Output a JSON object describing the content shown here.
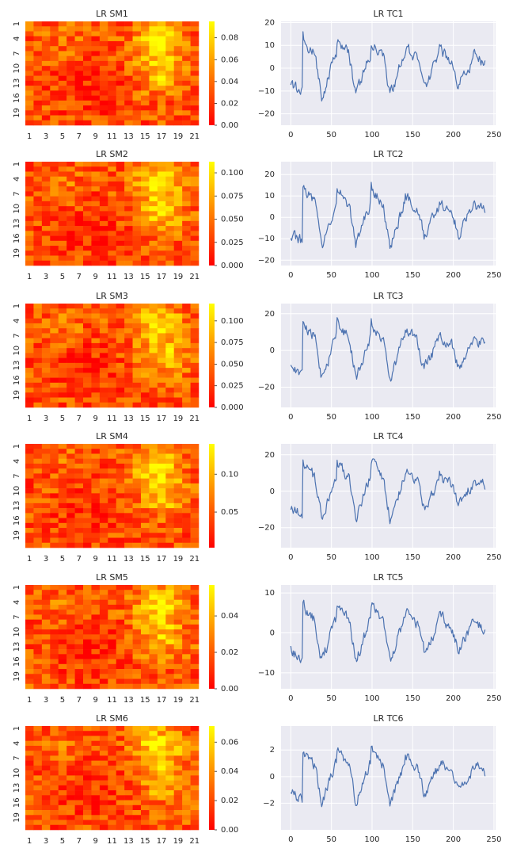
{
  "figure": {
    "background": "#ffffff",
    "colormap": [
      "#ff0000",
      "#ffff00"
    ],
    "plot_background": "#eaeaf2",
    "grid_color": "#ffffff",
    "line_color": "#4c72b0"
  },
  "chart_data": [
    {
      "type": "heatmap",
      "title": "LR SM1",
      "rows": 21,
      "cols": 21,
      "x_tick_labels": [
        "1",
        "3",
        "5",
        "7",
        "9",
        "11",
        "13",
        "15",
        "17",
        "19",
        "21"
      ],
      "y_tick_labels": [
        "1",
        "4",
        "7",
        "10",
        "13",
        "16",
        "19"
      ],
      "vmin": 0,
      "vmax": 0.095,
      "colorbar_ticks": [
        0.0,
        0.02,
        0.04,
        0.06,
        0.08
      ],
      "colorbar_tick_labels": [
        "0.00",
        "0.02",
        "0.04",
        "0.06",
        "0.08"
      ],
      "seed": 11
    },
    {
      "type": "line",
      "title": "LR TC1",
      "xlim": [
        -12,
        252
      ],
      "ylim": [
        -25,
        20.5
      ],
      "x_ticks": [
        0,
        50,
        100,
        150,
        200,
        250
      ],
      "y_ticks": [
        -20,
        -10,
        0,
        10,
        20
      ],
      "y_tick_labels": [
        "−20",
        "−10",
        "0",
        "10",
        "20"
      ],
      "amplitude": 14,
      "seed": 21
    },
    {
      "type": "heatmap",
      "title": "LR SM2",
      "rows": 21,
      "cols": 21,
      "x_tick_labels": [
        "1",
        "3",
        "5",
        "7",
        "9",
        "11",
        "13",
        "15",
        "17",
        "19",
        "21"
      ],
      "y_tick_labels": [
        "1",
        "4",
        "7",
        "10",
        "13",
        "16",
        "19"
      ],
      "vmin": 0,
      "vmax": 0.112,
      "colorbar_ticks": [
        0.0,
        0.025,
        0.05,
        0.075,
        0.1
      ],
      "colorbar_tick_labels": [
        "0.000",
        "0.025",
        "0.050",
        "0.075",
        "0.100"
      ],
      "seed": 12
    },
    {
      "type": "line",
      "title": "LR TC2",
      "xlim": [
        -12,
        252
      ],
      "ylim": [
        -22.5,
        26
      ],
      "x_ticks": [
        0,
        50,
        100,
        150,
        200,
        250
      ],
      "y_ticks": [
        -20,
        -10,
        0,
        10,
        20
      ],
      "y_tick_labels": [
        "−20",
        "−10",
        "0",
        "10",
        "20"
      ],
      "amplitude": 15,
      "seed": 22
    },
    {
      "type": "heatmap",
      "title": "LR SM3",
      "rows": 21,
      "cols": 21,
      "x_tick_labels": [
        "1",
        "3",
        "5",
        "7",
        "9",
        "11",
        "13",
        "15",
        "17",
        "19",
        "21"
      ],
      "y_tick_labels": [
        "1",
        "4",
        "7",
        "10",
        "13",
        "16",
        "19"
      ],
      "vmin": 0,
      "vmax": 0.12,
      "colorbar_ticks": [
        0.0,
        0.025,
        0.05,
        0.075,
        0.1
      ],
      "colorbar_tick_labels": [
        "0.000",
        "0.025",
        "0.050",
        "0.075",
        "0.100"
      ],
      "seed": 13
    },
    {
      "type": "line",
      "title": "LR TC3",
      "xlim": [
        -12,
        252
      ],
      "ylim": [
        -31,
        25.5
      ],
      "x_ticks": [
        0,
        50,
        100,
        150,
        200,
        250
      ],
      "y_ticks": [
        -20,
        0,
        20
      ],
      "y_tick_labels": [
        "−20",
        "0",
        "20"
      ],
      "amplitude": 17,
      "seed": 23
    },
    {
      "type": "heatmap",
      "title": "LR SM4",
      "rows": 21,
      "cols": 21,
      "x_tick_labels": [
        "1",
        "3",
        "5",
        "7",
        "9",
        "11",
        "13",
        "15",
        "17",
        "19",
        "21"
      ],
      "y_tick_labels": [
        "1",
        "4",
        "7",
        "10",
        "13",
        "16",
        "19"
      ],
      "vmin": 0.003,
      "vmax": 0.14,
      "colorbar_ticks": [
        0.05,
        0.1
      ],
      "colorbar_tick_labels": [
        "0.05",
        "0.10"
      ],
      "seed": 14
    },
    {
      "type": "line",
      "title": "LR TC4",
      "xlim": [
        -12,
        252
      ],
      "ylim": [
        -31,
        26
      ],
      "x_ticks": [
        0,
        50,
        100,
        150,
        200,
        250
      ],
      "y_ticks": [
        -20,
        0,
        20
      ],
      "y_tick_labels": [
        "−20",
        "0",
        "20"
      ],
      "amplitude": 17,
      "seed": 24
    },
    {
      "type": "heatmap",
      "title": "LR SM5",
      "rows": 21,
      "cols": 21,
      "x_tick_labels": [
        "1",
        "3",
        "5",
        "7",
        "9",
        "11",
        "13",
        "15",
        "17",
        "19",
        "21"
      ],
      "y_tick_labels": [
        "1",
        "4",
        "7",
        "10",
        "13",
        "16",
        "19"
      ],
      "vmin": 0,
      "vmax": 0.057,
      "colorbar_ticks": [
        0.0,
        0.02,
        0.04
      ],
      "colorbar_tick_labels": [
        "0.00",
        "0.02",
        "0.04"
      ],
      "seed": 15
    },
    {
      "type": "line",
      "title": "LR TC5",
      "xlim": [
        -12,
        252
      ],
      "ylim": [
        -14,
        12
      ],
      "x_ticks": [
        0,
        50,
        100,
        150,
        200,
        250
      ],
      "y_ticks": [
        -10,
        0,
        10
      ],
      "y_tick_labels": [
        "−10",
        "0",
        "10"
      ],
      "amplitude": 8,
      "seed": 25
    },
    {
      "type": "heatmap",
      "title": "LR SM6",
      "rows": 21,
      "cols": 21,
      "x_tick_labels": [
        "1",
        "3",
        "5",
        "7",
        "9",
        "11",
        "13",
        "15",
        "17",
        "19",
        "21"
      ],
      "y_tick_labels": [
        "1",
        "4",
        "7",
        "10",
        "13",
        "16",
        "19"
      ],
      "vmin": 0,
      "vmax": 0.071,
      "colorbar_ticks": [
        0.0,
        0.02,
        0.04,
        0.06
      ],
      "colorbar_tick_labels": [
        "0.00",
        "0.02",
        "0.04",
        "0.06"
      ],
      "seed": 16
    },
    {
      "type": "line",
      "title": "LR TC6",
      "xlim": [
        -12,
        252
      ],
      "ylim": [
        -4,
        3.8
      ],
      "x_ticks": [
        0,
        50,
        100,
        150,
        200,
        250
      ],
      "y_ticks": [
        -2,
        0,
        2
      ],
      "y_tick_labels": [
        "−2",
        "0",
        "2"
      ],
      "amplitude": 2.2,
      "seed": 26
    }
  ]
}
